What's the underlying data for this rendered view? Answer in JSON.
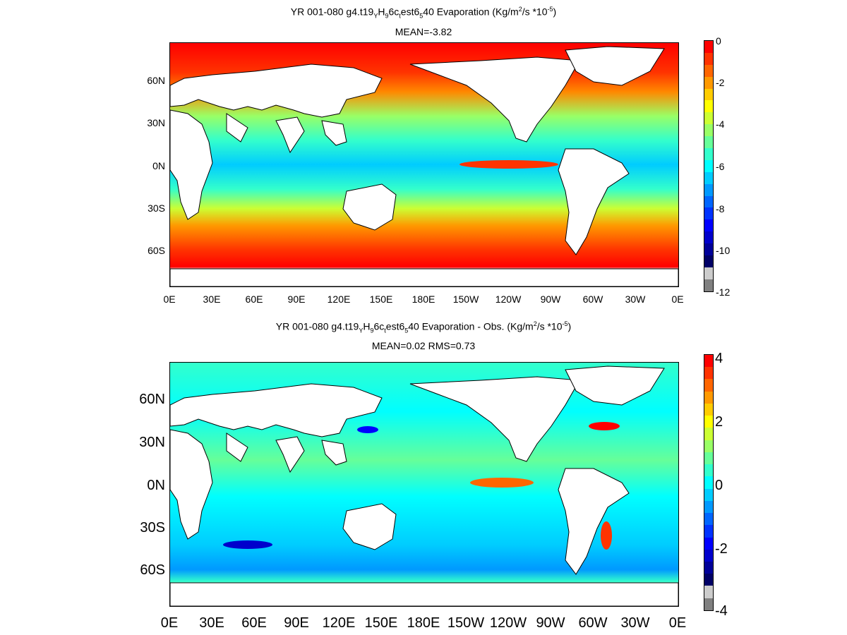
{
  "top": {
    "title_prefix": "YR 001-080 g4.t19",
    "title_y": "Y",
    "title_h": "H",
    "title_9": "9",
    "title_6c": "6c",
    "title_t": "t",
    "title_est6": "est6",
    "title_5": "5",
    "title_rest": "40  Evaporation (Kg/m",
    "title_sup2": "2",
    "title_units": "/s *10",
    "title_supexp": "-5",
    "title_close": ")",
    "subtitle": "MEAN=-3.82",
    "lat_labels": [
      "60N",
      "30N",
      "0N",
      "30S",
      "60S"
    ],
    "lon_labels": [
      "0E",
      "30E",
      "60E",
      "90E",
      "120E",
      "150E",
      "180E",
      "150W",
      "120W",
      "90W",
      "60W",
      "30W",
      "0E"
    ],
    "colorbar": {
      "ticks": [
        "0",
        "-2",
        "-4",
        "-6",
        "-8",
        "-10",
        "-12"
      ],
      "colors": [
        "#ff0000",
        "#ff3300",
        "#ff6600",
        "#ff9900",
        "#ffcc00",
        "#ffff00",
        "#ccff33",
        "#99ff66",
        "#66ff99",
        "#33ffcc",
        "#00ffff",
        "#00ccff",
        "#0099ff",
        "#0066ff",
        "#0033ff",
        "#0000ff",
        "#0000cc",
        "#000099",
        "#000066",
        "#cccccc",
        "#808080"
      ]
    }
  },
  "bottom": {
    "title_prefix": "YR 001-080 g4.t19",
    "title_y": "Y",
    "title_h": "H",
    "title_9": "9",
    "title_6c": "6c",
    "title_t": "t",
    "title_est6": "est6",
    "title_5": "5",
    "title_rest": "40 Evaporation - Obs. (Kg/m",
    "title_sup2": "2",
    "title_units": "/s *10",
    "title_supexp": "-5",
    "title_close": ")",
    "subtitle": "MEAN=0.02   RMS=0.73",
    "lat_labels": [
      "60N",
      "30N",
      "0N",
      "30S",
      "60S"
    ],
    "lon_labels": [
      "0E",
      "30E",
      "60E",
      "90E",
      "120E",
      "150E",
      "180E",
      "150W",
      "120W",
      "90W",
      "60W",
      "30W",
      "0E"
    ],
    "colorbar": {
      "ticks": [
        "4",
        "2",
        "0",
        "-2",
        "-4"
      ],
      "colors": [
        "#ff0000",
        "#ff3300",
        "#ff6600",
        "#ff9900",
        "#ffcc00",
        "#ffff00",
        "#ccff33",
        "#99ff66",
        "#66ff99",
        "#33ffcc",
        "#00ffff",
        "#00ccff",
        "#0099ff",
        "#0066ff",
        "#0033ff",
        "#0000ff",
        "#0000cc",
        "#000099",
        "#000066",
        "#cccccc",
        "#808080"
      ]
    }
  }
}
